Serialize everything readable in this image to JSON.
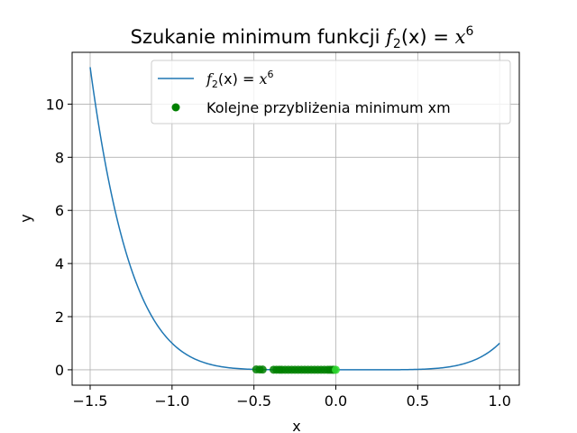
{
  "chart_data": {
    "type": "line",
    "title": {
      "prefix": "Szukanie minimum funkcji ",
      "func": "f",
      "sub": "2",
      "arg": "(x)",
      "eq": " = ",
      "base": "x",
      "exp": "6"
    },
    "xlabel": "x",
    "ylabel": "y",
    "xlim": [
      -1.61,
      1.12
    ],
    "ylim": [
      -0.58,
      11.95
    ],
    "xticks": [
      -1.5,
      -1.0,
      -0.5,
      0.0,
      0.5,
      1.0
    ],
    "xtick_labels": [
      "−1.5",
      "−1.0",
      "−0.5",
      "0.0",
      "0.5",
      "1.0"
    ],
    "yticks": [
      0,
      2,
      4,
      6,
      8,
      10
    ],
    "ytick_labels": [
      "0",
      "2",
      "4",
      "6",
      "8",
      "10"
    ],
    "grid": true,
    "legend_position": "upper-center",
    "series": [
      {
        "name": {
          "func": "f",
          "sub": "2",
          "arg": "(x)",
          "eq": " = ",
          "base": "x",
          "exp": "6"
        },
        "kind": "line",
        "color": "#1f77b4",
        "function": "x^6",
        "x_range": [
          -1.5,
          1.0
        ]
      },
      {
        "name": "Kolejne przybliżenia minimum xm",
        "kind": "scatter",
        "color": "#008000",
        "highlight_color": "#33dd33",
        "x": [
          -0.486,
          -0.465,
          -0.447,
          -0.38,
          -0.362,
          -0.345,
          -0.33,
          -0.31,
          -0.29,
          -0.27,
          -0.25,
          -0.23,
          -0.21,
          -0.19,
          -0.17,
          -0.15,
          -0.13,
          -0.11,
          -0.09,
          -0.07,
          -0.05,
          -0.035,
          -0.02,
          -0.01,
          0.0
        ]
      }
    ]
  }
}
